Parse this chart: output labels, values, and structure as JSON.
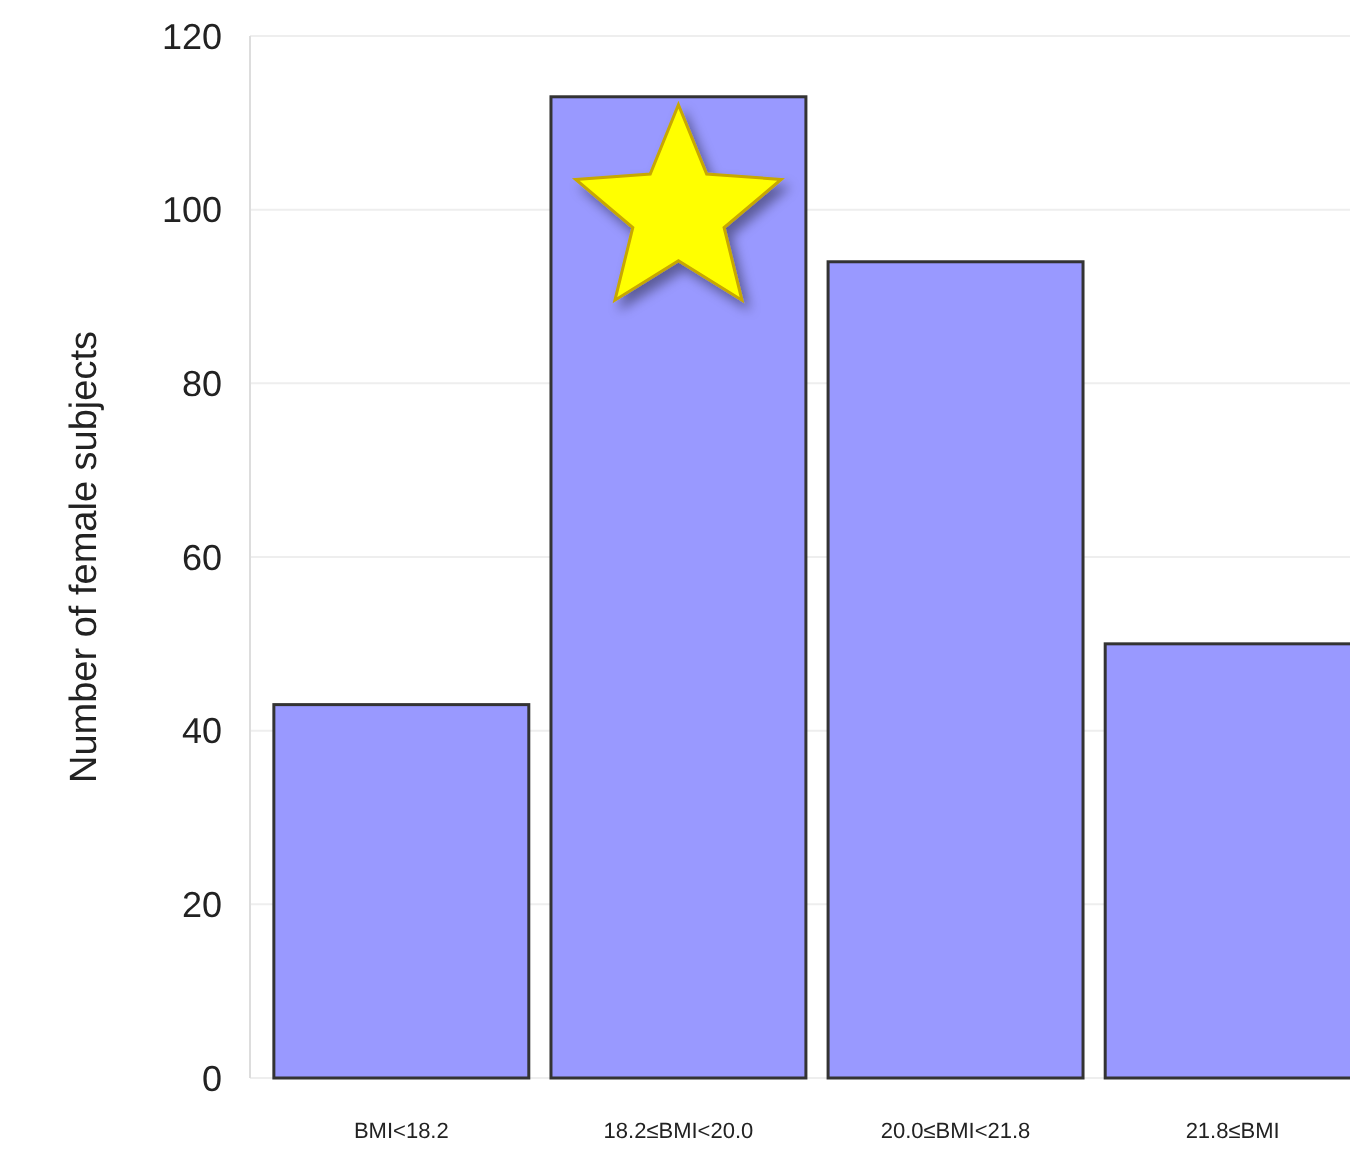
{
  "chart_data": {
    "type": "bar",
    "ylabel": "Number of female subjects",
    "categories": [
      "BMI<18.2",
      "18.2≤BMI<20.0",
      "20.0≤BMI<21.8",
      "21.8≤BMI"
    ],
    "values": [
      43,
      113,
      94,
      50
    ],
    "color": "#9999ff",
    "ylim": [
      0,
      120
    ],
    "yticks": [
      0,
      20,
      40,
      60,
      80,
      100,
      120
    ],
    "grid": "y"
  }
}
